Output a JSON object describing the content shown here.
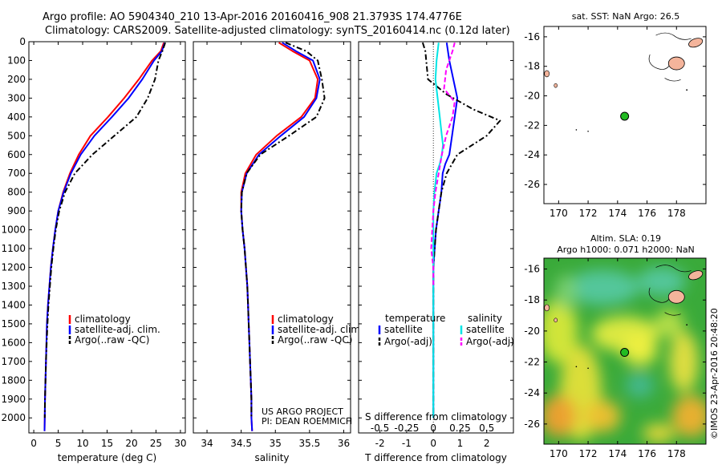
{
  "header": {
    "line1": "Argo profile: AO 5904340_210 13-Apr-2016 20160416_908 21.3793S 174.4776E",
    "line2": "Climatology: CARS2009. Satellite-adjusted climatology: synTS_20160414.nc (0.12d later)"
  },
  "credits": {
    "project": "US ARGO PROJECT",
    "pi": "PI: DEAN ROEMMICH",
    "imos": "©IMOS 23-Apr-2016 20:48:20"
  },
  "chart_data": [
    {
      "id": "temperature",
      "type": "line",
      "xlabel": "temperature (deg C)",
      "ylabel": "",
      "xlim": [
        -1,
        31
      ],
      "ylim": [
        2080,
        0
      ],
      "xticks": [
        0,
        5,
        10,
        15,
        20,
        25,
        30
      ],
      "yticks": [
        0,
        100,
        200,
        300,
        400,
        500,
        600,
        700,
        800,
        900,
        1000,
        1100,
        1200,
        1300,
        1400,
        1500,
        1600,
        1700,
        1800,
        1900,
        2000
      ],
      "legend": [
        "climatology",
        "satellite-adj. clim.",
        "Argo(..raw -QC)"
      ],
      "series": [
        {
          "name": "climatology",
          "color": "#ff0000",
          "style": "solid",
          "x": [
            26.6,
            26.0,
            24.2,
            21.5,
            18.5,
            15.2,
            11.6,
            9.2,
            7.4,
            6.0,
            5.0,
            4.4,
            3.9,
            3.5,
            3.2,
            2.9,
            2.7,
            2.6,
            2.5,
            2.4,
            2.3,
            2.25,
            2.2
          ],
          "y": [
            5,
            50,
            100,
            200,
            300,
            400,
            500,
            600,
            700,
            800,
            900,
            1000,
            1100,
            1200,
            1300,
            1400,
            1500,
            1600,
            1700,
            1800,
            1900,
            2000,
            2070
          ]
        },
        {
          "name": "satellite-adj. clim.",
          "color": "#0000ff",
          "style": "solid",
          "x": [
            26.8,
            26.2,
            24.6,
            22.2,
            19.4,
            16.0,
            12.4,
            9.6,
            7.6,
            6.1,
            5.0,
            4.4,
            3.9,
            3.5,
            3.2,
            2.9,
            2.7,
            2.6,
            2.5,
            2.4,
            2.3,
            2.25,
            2.2
          ],
          "y": [
            5,
            50,
            100,
            200,
            300,
            400,
            500,
            600,
            700,
            800,
            900,
            1000,
            1100,
            1200,
            1300,
            1400,
            1500,
            1600,
            1700,
            1800,
            1900,
            2000,
            2070
          ]
        },
        {
          "name": "Argo(..raw -QC)",
          "color": "#000000",
          "style": "dashdot",
          "x": [
            26.9,
            26.3,
            25.5,
            24.8,
            23.3,
            21.0,
            16.5,
            12.0,
            8.4,
            6.4,
            5.2,
            4.5,
            4.0,
            3.6,
            3.3,
            3.0,
            2.8,
            2.65,
            2.5,
            2.4,
            2.3,
            2.25
          ],
          "y": [
            5,
            50,
            100,
            200,
            300,
            400,
            500,
            600,
            700,
            800,
            900,
            1000,
            1100,
            1200,
            1300,
            1400,
            1500,
            1600,
            1700,
            1800,
            1900,
            2000
          ]
        }
      ]
    },
    {
      "id": "salinity",
      "type": "line",
      "xlabel": "salinity",
      "xlim": [
        33.8,
        36.1
      ],
      "ylim": [
        2080,
        0
      ],
      "xticks": [
        34,
        34.5,
        35,
        35.5,
        36
      ],
      "xticklabels": [
        "34",
        "34.5",
        "35",
        "35.5",
        "36"
      ],
      "legend": [
        "climatology",
        "satellite-adj. clim.",
        "Argo(..raw -QC)"
      ],
      "series": [
        {
          "name": "climatology",
          "color": "#ff0000",
          "style": "solid",
          "x": [
            35.05,
            35.25,
            35.5,
            35.62,
            35.58,
            35.38,
            35.02,
            34.72,
            34.56,
            34.5,
            34.5,
            34.52,
            34.55,
            34.57,
            34.59,
            34.6,
            34.61,
            34.62,
            34.63,
            34.64,
            34.65,
            34.65,
            34.66
          ],
          "y": [
            5,
            50,
            100,
            200,
            300,
            400,
            500,
            600,
            700,
            800,
            900,
            1000,
            1100,
            1200,
            1300,
            1400,
            1500,
            1600,
            1700,
            1800,
            1900,
            2000,
            2070
          ]
        },
        {
          "name": "satellite-adj. clim.",
          "color": "#0000ff",
          "style": "solid",
          "x": [
            35.1,
            35.3,
            35.55,
            35.65,
            35.6,
            35.42,
            35.08,
            34.76,
            34.58,
            34.51,
            34.5,
            34.52,
            34.55,
            34.57,
            34.59,
            34.6,
            34.61,
            34.62,
            34.63,
            34.64,
            34.65,
            34.65,
            34.66
          ],
          "y": [
            5,
            50,
            100,
            200,
            300,
            400,
            500,
            600,
            700,
            800,
            900,
            1000,
            1100,
            1200,
            1300,
            1400,
            1500,
            1600,
            1700,
            1800,
            1900,
            2000,
            2070
          ]
        },
        {
          "name": "Argo(..raw -QC)",
          "color": "#000000",
          "style": "dashdot",
          "x": [
            35.15,
            35.45,
            35.62,
            35.68,
            35.72,
            35.6,
            35.2,
            34.78,
            34.58,
            34.51,
            34.5,
            34.52,
            34.55,
            34.57,
            34.59,
            34.6,
            34.61,
            34.62,
            34.63,
            34.64,
            34.65,
            34.65
          ],
          "y": [
            5,
            50,
            100,
            200,
            300,
            400,
            500,
            600,
            700,
            800,
            900,
            1000,
            1100,
            1200,
            1300,
            1400,
            1500,
            1600,
            1700,
            1800,
            1900,
            2000
          ]
        }
      ]
    },
    {
      "id": "difference",
      "type": "line",
      "xlabel": "T difference from climatology",
      "x2label": "S difference from climatology",
      "xlim": [
        -2.8,
        3.0
      ],
      "x2lim": [
        -0.7,
        0.75
      ],
      "ylim": [
        2080,
        0
      ],
      "xticks": [
        -2,
        -1,
        0,
        1,
        2
      ],
      "x2ticks": [
        -0.5,
        -0.25,
        0,
        0.25,
        0.5
      ],
      "x2ticklabels": [
        "-0.5",
        "-0.25",
        "0",
        "0.25",
        "0.5"
      ],
      "legend_temperature": "temperature",
      "legend_salinity": "salinity",
      "legend_items": [
        "satellite",
        "Argo(-adj)",
        "satellite",
        "Argo(-adj)"
      ],
      "series": [
        {
          "name": "satellite",
          "quantity": "temperature",
          "color": "#0000ff",
          "style": "solid",
          "x": [
            0.5,
            0.6,
            0.75,
            0.9,
            0.8,
            0.7,
            0.6,
            0.45,
            0.35,
            0.3,
            0.2,
            0.1,
            0.05,
            0.0,
            0.0,
            0.0,
            0.0,
            0.0,
            0.0,
            0.0,
            0.0
          ],
          "y": [
            5,
            100,
            200,
            300,
            400,
            500,
            600,
            650,
            700,
            800,
            900,
            1000,
            1100,
            1200,
            1300,
            1400,
            1500,
            1600,
            1700,
            1800,
            2000
          ]
        },
        {
          "name": "Argo(-adj)",
          "quantity": "temperature",
          "color": "#000000",
          "style": "dashdot",
          "x": [
            -0.4,
            -0.3,
            -0.2,
            0.5,
            1.5,
            2.5,
            2.0,
            0.9,
            0.5,
            0.3,
            0.2,
            0.1,
            0.05,
            0.0,
            0.0,
            0.0,
            0.0,
            0.0,
            0.0,
            0.0,
            0.0
          ],
          "y": [
            5,
            50,
            200,
            280,
            360,
            420,
            500,
            600,
            700,
            800,
            900,
            1000,
            1100,
            1200,
            1300,
            1400,
            1500,
            1600,
            1700,
            1800,
            2000
          ]
        },
        {
          "name": "satellite",
          "quantity": "salinity",
          "color": "#00e5e5",
          "style": "solid",
          "x": [
            0.05,
            0.03,
            0.02,
            0.04,
            0.06,
            0.08,
            0.09,
            0.08,
            0.06,
            0.03,
            0.01,
            0.0,
            0.0,
            0.0,
            0.0,
            0.0,
            0.0,
            0.0,
            0.0,
            0.0,
            0.0
          ],
          "y": [
            5,
            100,
            200,
            300,
            400,
            500,
            550,
            600,
            650,
            700,
            800,
            900,
            1000,
            1100,
            1200,
            1300,
            1400,
            1600,
            1800,
            1900,
            2000
          ]
        },
        {
          "name": "Argo(-adj)",
          "quantity": "salinity",
          "color": "#ff00ff",
          "style": "dashed",
          "x": [
            0.2,
            0.18,
            0.12,
            0.1,
            0.2,
            0.18,
            0.12,
            0.08,
            0.05,
            0.02,
            0.0,
            -0.01,
            -0.02,
            0.0,
            0.0
          ],
          "y": [
            5,
            50,
            150,
            250,
            320,
            400,
            500,
            600,
            700,
            800,
            900,
            1000,
            1100,
            1200,
            1300
          ]
        }
      ]
    },
    {
      "id": "sst-map",
      "type": "scatter",
      "title": "sat. SST: NaN Argo: 26.5",
      "xlim": [
        169,
        180
      ],
      "ylim": [
        -27.3,
        -15.3
      ],
      "xticks": [
        170,
        172,
        174,
        176,
        178
      ],
      "yticks": [
        -16,
        -18,
        -20,
        -22,
        -24,
        -26
      ],
      "x": [
        174.48
      ],
      "y": [
        -21.38
      ]
    },
    {
      "id": "sla-map",
      "type": "heatmap",
      "title": "Altim. SLA: 0.19",
      "subtitle": "Argo h1000: 0.071 h2000: NaN",
      "xlim": [
        169,
        180
      ],
      "ylim": [
        -27.3,
        -15.3
      ],
      "xticks": [
        170,
        172,
        174,
        176,
        178
      ],
      "yticks": [
        -16,
        -18,
        -20,
        -22,
        -24,
        -26
      ],
      "x": [
        174.48
      ],
      "y": [
        -21.38
      ]
    }
  ],
  "colors": {
    "climatology": "#ff0000",
    "satellite": "#0000ff",
    "argo": "#000000",
    "salinity_satellite": "#00e5e5",
    "salinity_argo": "#ff00ff",
    "argo_marker": "#22bb22",
    "land": "#f4b49b"
  }
}
